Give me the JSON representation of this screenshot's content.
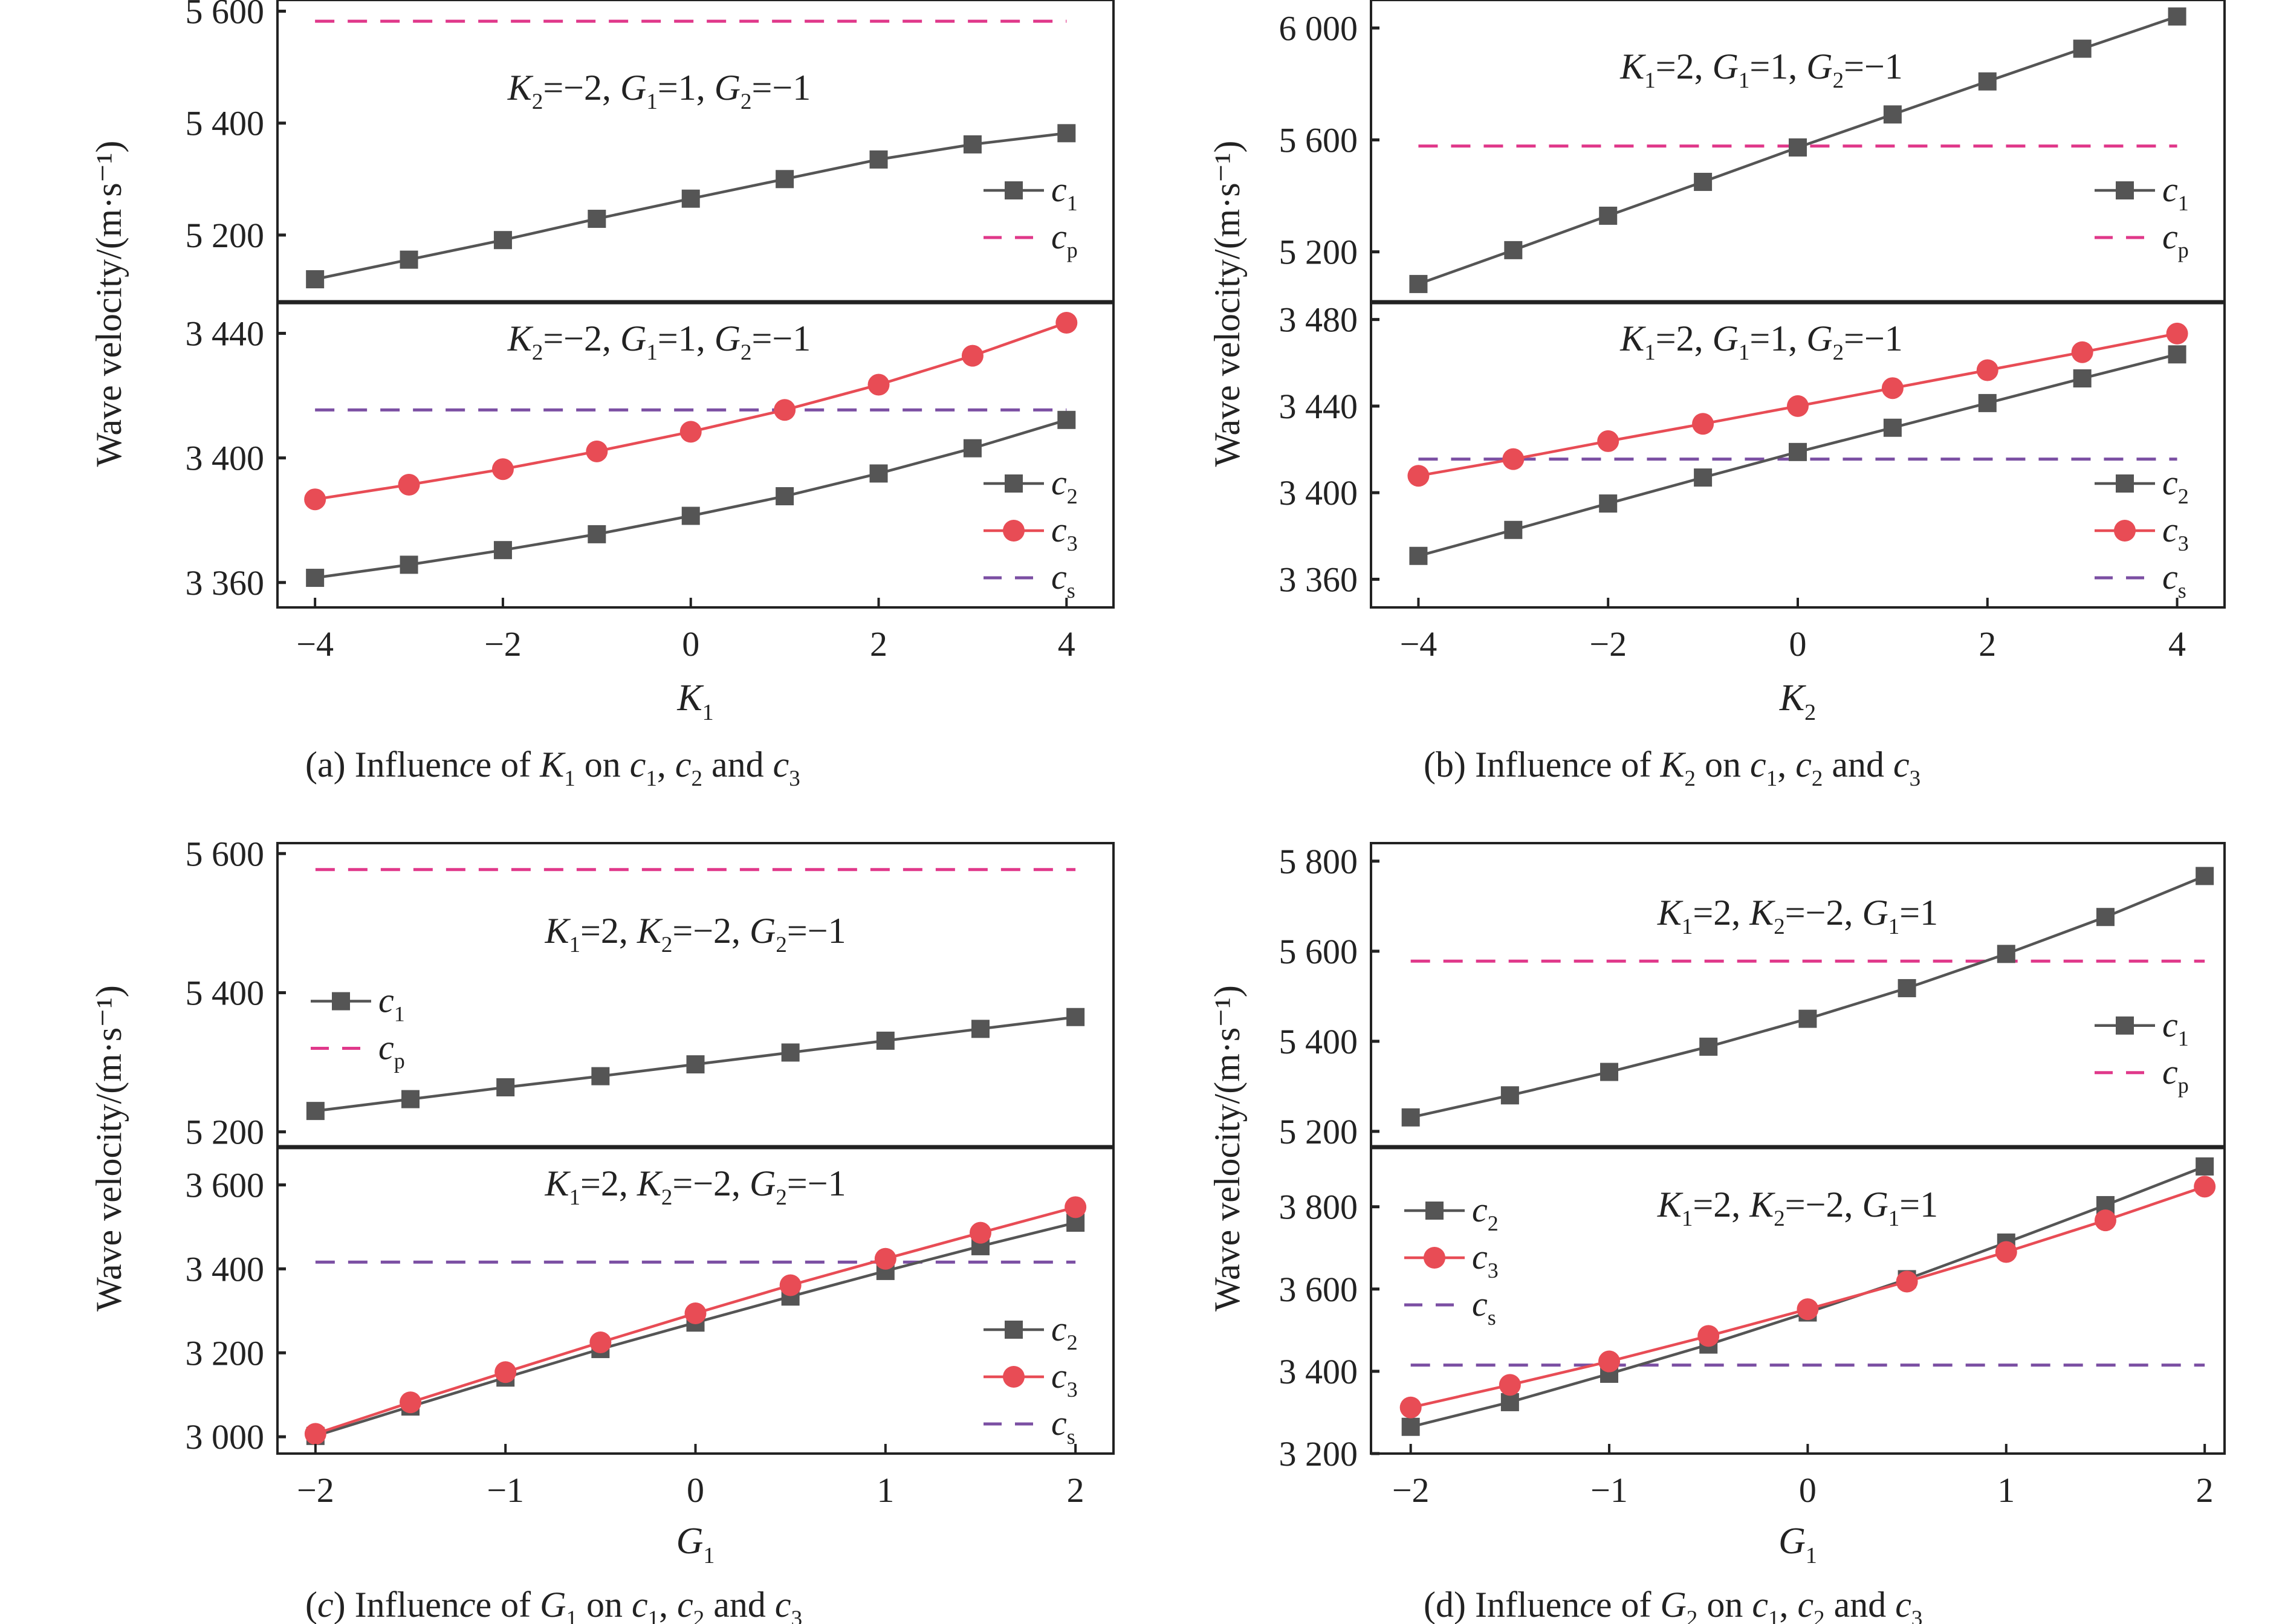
{
  "figure": {
    "ylabel_shared": "Wave velocity/(m·s⁻¹)"
  },
  "colors": {
    "c1": "#555555",
    "c2": "#555555",
    "c3": "#e84c55",
    "cp": "#e0388a",
    "cs": "#7b4fa3",
    "axis": "#222222"
  },
  "chart_data": [
    {
      "id": "a",
      "type": "line",
      "caption": "(a) Influence of K₁ on c₁, c₂ and c₃",
      "xlabel": "K₁",
      "ylabel": "Wave velocity/(m·s⁻¹)",
      "x": [
        -4,
        -3,
        -2,
        -1,
        0,
        1,
        2,
        3,
        4
      ],
      "xlim": [
        -4.4,
        4.5
      ],
      "xticks": [
        -4,
        -2,
        0,
        2,
        4
      ],
      "xtick_labels": [
        "−4",
        "−2",
        "0",
        "2",
        "4"
      ],
      "grid": false,
      "top": {
        "annotation": "K₂=−2, G₁=1, G₂=−1",
        "ylim": [
          5080,
          5620
        ],
        "yticks": [
          5200,
          5400,
          5600
        ],
        "ytick_labels": [
          "5 200",
          "5 400",
          "5 600"
        ],
        "legend_position": "right",
        "series": [
          {
            "name": "c₁",
            "key": "c1",
            "style": "line-square",
            "values": [
              5121,
              5156,
              5191,
              5229,
              5265,
              5300,
              5335,
              5362,
              5382
            ]
          },
          {
            "name": "cₚ",
            "key": "cp",
            "style": "dashed",
            "constant": 5582
          }
        ]
      },
      "bottom": {
        "annotation": "K₂=−2, G₁=1, G₂=−1",
        "ylim": [
          3352,
          3450
        ],
        "yticks": [
          3360,
          3400,
          3440
        ],
        "ytick_labels": [
          "3 360",
          "3 400",
          "3 440"
        ],
        "legend_position": "bottom-right",
        "series": [
          {
            "name": "c₂",
            "key": "c2",
            "style": "line-square",
            "values": [
              3361.5,
              3365.7,
              3370.4,
              3375.5,
              3381.4,
              3387.7,
              3395.0,
              3403.1,
              3412.2
            ]
          },
          {
            "name": "c₃",
            "key": "c3",
            "style": "line-circle",
            "values": [
              3386.7,
              3391.4,
              3396.4,
              3402.1,
              3408.4,
              3415.4,
              3423.5,
              3432.8,
              3443.4
            ]
          },
          {
            "name": "cₛ",
            "key": "cs",
            "style": "dashed",
            "constant": 3415.4
          }
        ]
      }
    },
    {
      "id": "b",
      "type": "line",
      "caption": "(b) Influence of K₂ on c₁, c₂ and c₃",
      "xlabel": "K₂",
      "ylabel": "Wave velocity/(m·s⁻¹)",
      "x": [
        -4,
        -3,
        -2,
        -1,
        0,
        1,
        2,
        3,
        4
      ],
      "xlim": [
        -4.5,
        4.5
      ],
      "xticks": [
        -4,
        -2,
        0,
        2,
        4
      ],
      "xtick_labels": [
        "−4",
        "−2",
        "0",
        "2",
        "4"
      ],
      "grid": false,
      "top": {
        "annotation": "K₁=2, G₁=1, G₂=−1",
        "ylim": [
          5020,
          6100
        ],
        "yticks": [
          5200,
          5600,
          6000
        ],
        "ytick_labels": [
          "5 200",
          "5 600",
          "6 000"
        ],
        "legend_position": "right",
        "series": [
          {
            "name": "c₁",
            "key": "c1",
            "style": "line-square",
            "values": [
              5085,
              5206,
              5329,
              5450,
              5573,
              5691,
              5809,
              5926,
              6041
            ]
          },
          {
            "name": "cₚ",
            "key": "cp",
            "style": "dashed",
            "constant": 5578
          }
        ]
      },
      "bottom": {
        "annotation": "K₁=2, G₁=1, G₂=−1",
        "ylim": [
          3347,
          3488
        ],
        "yticks": [
          3360,
          3400,
          3440,
          3480
        ],
        "ytick_labels": [
          "3 360",
          "3 400",
          "3 440",
          "3 480"
        ],
        "legend_position": "bottom-right",
        "series": [
          {
            "name": "c₂",
            "key": "c2",
            "style": "line-square",
            "values": [
              3370.8,
              3382.8,
              3395.0,
              3407.0,
              3418.8,
              3430.0,
              3441.4,
              3452.8,
              3463.9
            ]
          },
          {
            "name": "c₃",
            "key": "c3",
            "style": "line-circle",
            "values": [
              3407.8,
              3415.5,
              3423.8,
              3431.8,
              3440.0,
              3448.3,
              3456.6,
              3464.9,
              3473.5
            ]
          },
          {
            "name": "cₛ",
            "key": "cs",
            "style": "dashed",
            "constant": 3415.5
          }
        ]
      }
    },
    {
      "id": "c",
      "type": "line",
      "caption": "(c) Influence of G₁ on c₁, c₂ and c₃",
      "xlabel": "G₁",
      "ylabel": "Wave velocity/(m·s⁻¹)",
      "x": [
        -2,
        -1.5,
        -1,
        -0.5,
        0,
        0.5,
        1,
        1.5,
        2
      ],
      "xlim": [
        -2.2,
        2.2
      ],
      "xticks": [
        -2,
        -1,
        0,
        1,
        2
      ],
      "xtick_labels": [
        "−2",
        "−1",
        "0",
        "1",
        "2"
      ],
      "grid": false,
      "top": {
        "annotation": "K₁=2, K₂=−2, G₂=−1",
        "ylim": [
          5178,
          5615
        ],
        "yticks": [
          5200,
          5400,
          5600
        ],
        "ytick_labels": [
          "5 200",
          "5 400",
          "5 600"
        ],
        "legend_position": "left",
        "series": [
          {
            "name": "c₁",
            "key": "c1",
            "style": "line-square",
            "values": [
              5230,
              5247,
              5264,
              5280,
              5297,
              5314,
              5331,
              5348,
              5365
            ]
          },
          {
            "name": "cₚ",
            "key": "cp",
            "style": "dashed",
            "constant": 5577
          }
        ]
      },
      "bottom": {
        "annotation": "K₁=2, K₂=−2, G₂=−1",
        "ylim": [
          2960,
          3690
        ],
        "yticks": [
          3000,
          3200,
          3400,
          3600
        ],
        "ytick_labels": [
          "3 000",
          "3 200",
          "3 400",
          "3 600"
        ],
        "legend_position": "bottom-right",
        "series": [
          {
            "name": "c₂",
            "key": "c2",
            "style": "line-square",
            "values": [
              3002,
              3072,
              3141,
              3209,
              3272,
              3334,
              3395,
              3454,
              3510
            ]
          },
          {
            "name": "c₃",
            "key": "c3",
            "style": "line-circle",
            "values": [
              3007,
              3082,
              3154,
              3225,
              3294,
              3361,
              3424,
              3486,
              3547
            ]
          },
          {
            "name": "cₛ",
            "key": "cs",
            "style": "dashed",
            "constant": 3416
          }
        ]
      }
    },
    {
      "id": "d",
      "type": "line",
      "caption": "(d) Influence of G₂ on c₁, c₂ and c₃",
      "xlabel": "G₁",
      "ylabel": "Wave velocity/(m·s⁻¹)",
      "x": [
        -2,
        -1.5,
        -1,
        -0.5,
        0,
        0.5,
        1,
        1.5,
        2
      ],
      "xlim": [
        -2.2,
        2.1
      ],
      "xticks": [
        -2,
        -1,
        0,
        1,
        2
      ],
      "xtick_labels": [
        "−2",
        "−1",
        "0",
        "1",
        "2"
      ],
      "grid": false,
      "top": {
        "annotation": "K₁=2, K₂=−2, G₁=1",
        "ylim": [
          5165,
          5840
        ],
        "yticks": [
          5200,
          5400,
          5600,
          5800
        ],
        "ytick_labels": [
          "5 200",
          "5 400",
          "5 600",
          "5 800"
        ],
        "legend_position": "right",
        "series": [
          {
            "name": "c₁",
            "key": "c1",
            "style": "line-square",
            "values": [
              5231,
              5280,
              5332,
              5388,
              5450,
              5518,
              5594,
              5676,
              5767
            ]
          },
          {
            "name": "cₚ",
            "key": "cp",
            "style": "dashed",
            "constant": 5578
          }
        ]
      },
      "bottom": {
        "annotation": "K₁=2, K₂=−2, G₁=1",
        "ylim": [
          3200,
          3945
        ],
        "yticks": [
          3200,
          3400,
          3600,
          3800
        ],
        "ytick_labels": [
          "3 200",
          "3 400",
          "3 600",
          "3 800"
        ],
        "legend_position": "left",
        "series": [
          {
            "name": "c₂",
            "key": "c2",
            "style": "line-square",
            "values": [
              3265,
              3325,
              3394,
              3465,
              3543,
              3624,
              3713,
              3804,
              3898
            ]
          },
          {
            "name": "c₃",
            "key": "c3",
            "style": "line-circle",
            "values": [
              3312,
              3367,
              3424,
              3486,
              3551,
              3618,
              3690,
              3767,
              3849
            ]
          },
          {
            "name": "cₛ",
            "key": "cs",
            "style": "dashed",
            "constant": 3415
          }
        ]
      }
    }
  ]
}
